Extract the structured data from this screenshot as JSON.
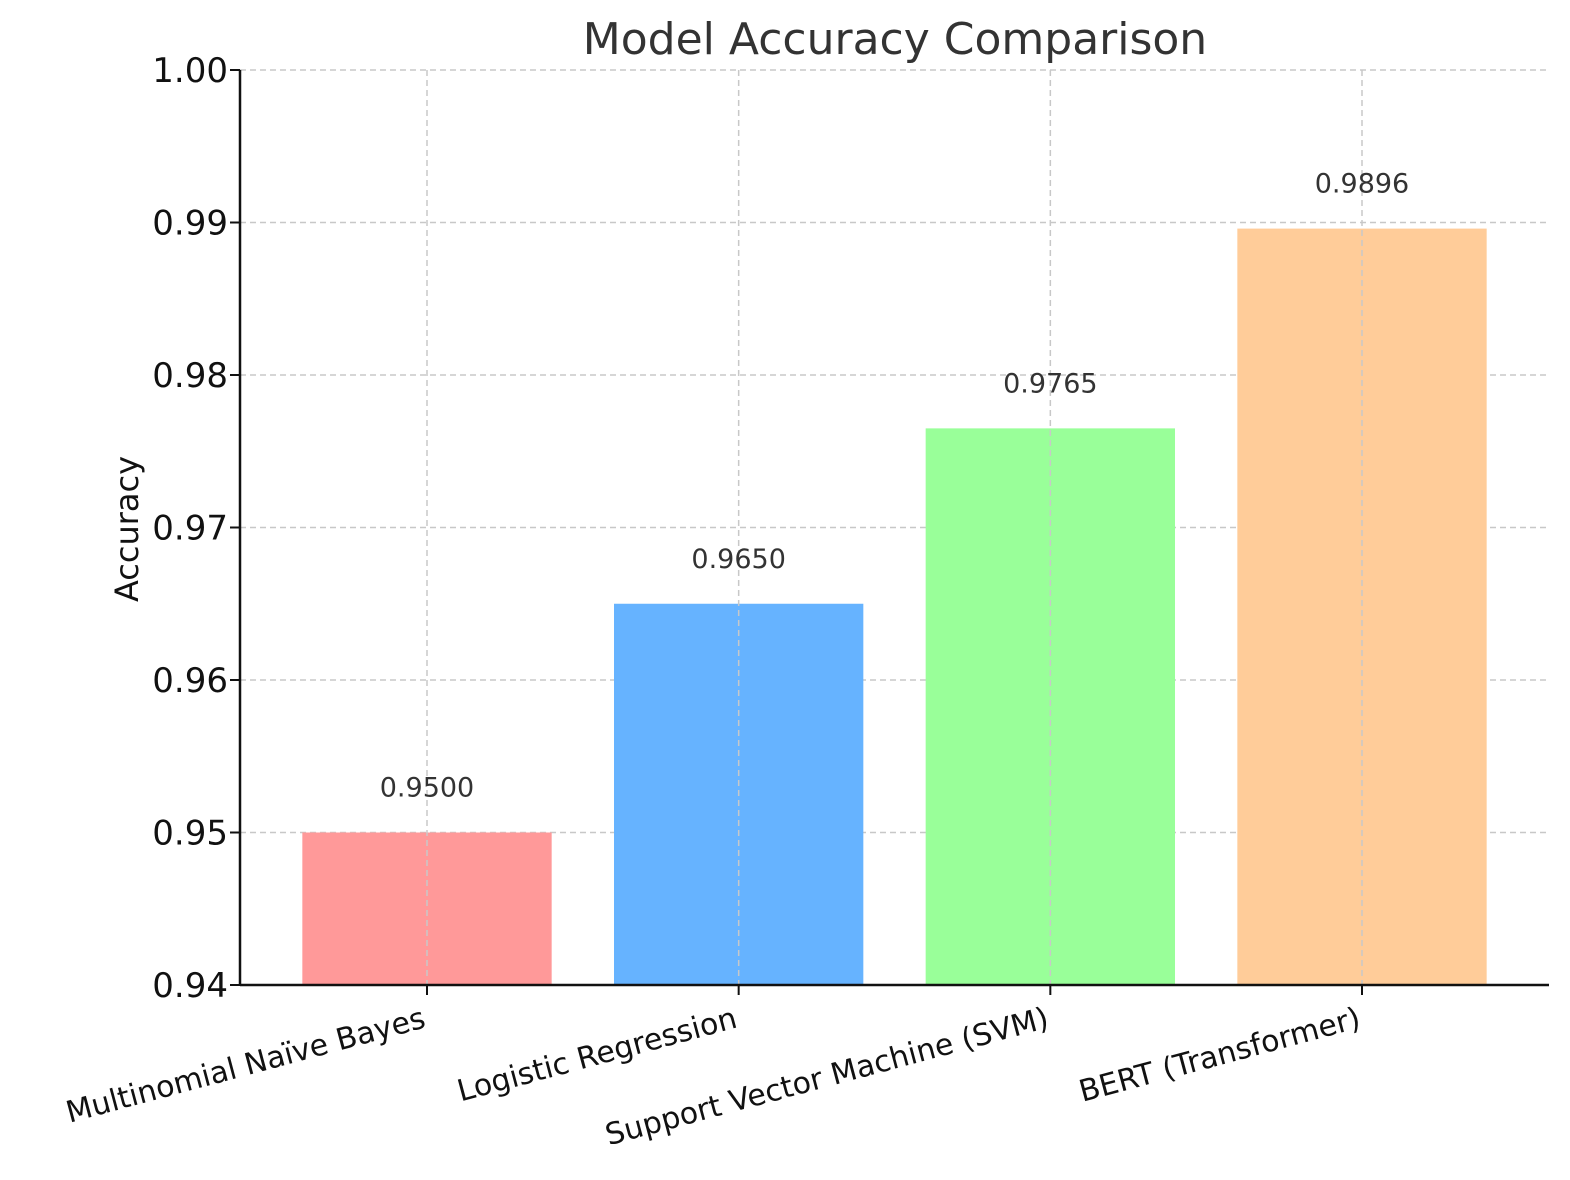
{
  "chart_data": {
    "type": "bar",
    "title": "Model Accuracy Comparison",
    "xlabel": "",
    "ylabel": "Accuracy",
    "categories": [
      "Multinomial Naïve Bayes",
      "Logistic Regression",
      "Support Vector Machine (SVM)",
      "BERT (Transformer)"
    ],
    "values": [
      0.95,
      0.965,
      0.9765,
      0.9896
    ],
    "value_labels": [
      "0.9500",
      "0.9650",
      "0.9765",
      "0.9896"
    ],
    "colors": [
      "#ff9999",
      "#66b3ff",
      "#99ff99",
      "#ffcc99"
    ],
    "ylim": [
      0.94,
      1.0
    ],
    "yticks": [
      0.94,
      0.95,
      0.96,
      0.97,
      0.98,
      0.99,
      1.0
    ],
    "ytick_labels": [
      "0.94",
      "0.95",
      "0.96",
      "0.97",
      "0.98",
      "0.99",
      "1.00"
    ],
    "grid": true,
    "grid_style": "dashed"
  }
}
